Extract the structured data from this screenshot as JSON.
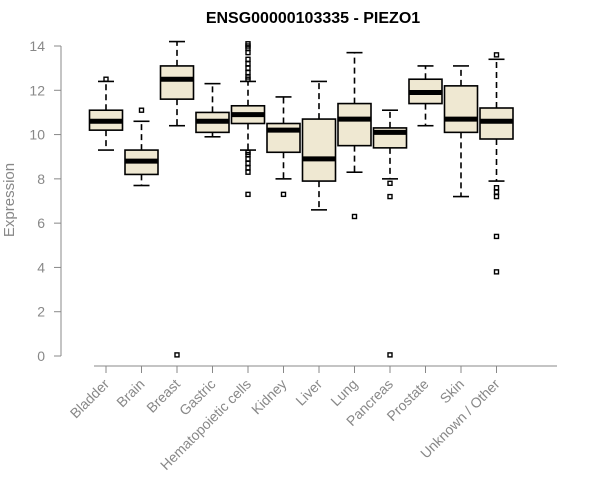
{
  "chart_data": {
    "type": "boxplot",
    "title": "ENSG00000103335 - PIEZO1",
    "xlabel": "",
    "ylabel": "Expression",
    "ylim": [
      0,
      14
    ],
    "yticks": [
      0,
      2,
      4,
      6,
      8,
      10,
      12,
      14
    ],
    "grid": false,
    "colors": {
      "box_fill": "#efe8d2",
      "stroke": "#000000",
      "axis": "#888888"
    },
    "categories": [
      "Bladder",
      "Brain",
      "Breast",
      "Gastric",
      "Hematopoietic cells",
      "Kidney",
      "Liver",
      "Lung",
      "Pancreas",
      "Prostate",
      "Skin",
      "Unknown / Other"
    ],
    "boxes": [
      {
        "min": 9.3,
        "q1": 10.2,
        "median": 10.6,
        "q3": 11.1,
        "max": 12.4,
        "outliers": [
          12.5
        ]
      },
      {
        "min": 7.7,
        "q1": 8.2,
        "median": 8.8,
        "q3": 9.3,
        "max": 10.6,
        "outliers": [
          11.1
        ]
      },
      {
        "min": 10.4,
        "q1": 11.6,
        "median": 12.5,
        "q3": 13.1,
        "max": 14.2,
        "outliers": [
          0.05
        ]
      },
      {
        "min": 9.9,
        "q1": 10.1,
        "median": 10.6,
        "q3": 11.0,
        "max": 12.3,
        "outliers": []
      },
      {
        "min": 9.3,
        "q1": 10.5,
        "median": 10.9,
        "q3": 11.3,
        "max": 12.4,
        "outliers": [
          7.3,
          8.3,
          8.5,
          8.7,
          8.9,
          9.1,
          9.2,
          12.5,
          12.6,
          12.8,
          13.0,
          13.2,
          13.4,
          13.7,
          13.9,
          14.0,
          14.1
        ]
      },
      {
        "min": 8.0,
        "q1": 9.2,
        "median": 10.2,
        "q3": 10.5,
        "max": 11.7,
        "outliers": [
          7.3
        ]
      },
      {
        "min": 6.6,
        "q1": 7.9,
        "median": 8.9,
        "q3": 10.7,
        "max": 12.4,
        "outliers": []
      },
      {
        "min": 8.3,
        "q1": 9.5,
        "median": 10.7,
        "q3": 11.4,
        "max": 13.7,
        "outliers": [
          6.3
        ]
      },
      {
        "min": 8.0,
        "q1": 9.4,
        "median": 10.1,
        "q3": 10.3,
        "max": 11.1,
        "outliers": [
          7.2,
          7.8,
          0.05
        ]
      },
      {
        "min": 10.4,
        "q1": 11.4,
        "median": 11.9,
        "q3": 12.5,
        "max": 13.1,
        "outliers": []
      },
      {
        "min": 7.2,
        "q1": 10.1,
        "median": 10.7,
        "q3": 12.2,
        "max": 13.1,
        "outliers": []
      },
      {
        "min": 7.9,
        "q1": 9.8,
        "median": 10.6,
        "q3": 11.2,
        "max": 13.4,
        "outliers": [
          3.8,
          5.4,
          7.2,
          7.4,
          7.6,
          13.6
        ]
      }
    ]
  }
}
